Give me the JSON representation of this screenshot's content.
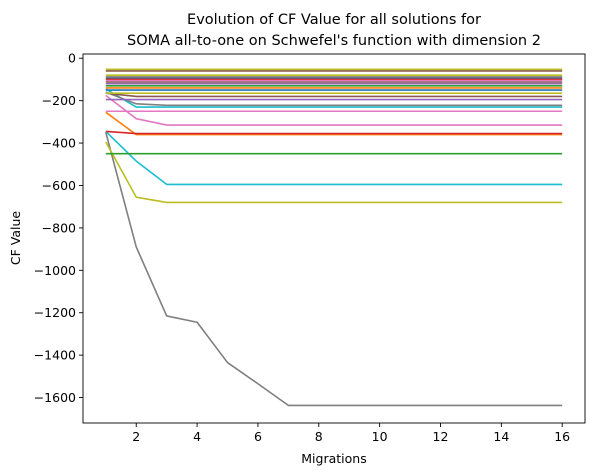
{
  "chart_data": {
    "type": "line",
    "title_line1": "Evolution of CF Value for all solutions for",
    "title_line2": "SOMA all-to-one on Schwefel's function with dimension 2",
    "xlabel": "Migrations",
    "ylabel": "CF Value",
    "xlim": [
      0.25,
      16.75
    ],
    "ylim": [
      -1720,
      20
    ],
    "xticks": [
      2,
      4,
      6,
      8,
      10,
      12,
      14,
      16
    ],
    "yticks": [
      0,
      -200,
      -400,
      -600,
      -800,
      -1000,
      -1200,
      -1400,
      -1600
    ],
    "x": [
      1,
      2,
      3,
      4,
      5,
      6,
      7,
      8,
      9,
      10,
      11,
      12,
      13,
      14,
      15,
      16
    ],
    "legend": "none",
    "grid": false,
    "series": [
      {
        "color": "#7f7f7f",
        "values": [
          -350,
          -890,
          -1215,
          -1245,
          -1435,
          -1535,
          -1637,
          -1637,
          -1637,
          -1637,
          -1637,
          -1637,
          -1637,
          -1637,
          -1637,
          -1637
        ]
      },
      {
        "color": "#bcbd22",
        "values": [
          -395,
          -655,
          -680,
          -680,
          -680,
          -680,
          -680,
          -680,
          -680,
          -680,
          -680,
          -680,
          -680,
          -680,
          -680,
          -680
        ]
      },
      {
        "color": "#17becf",
        "values": [
          -345,
          -485,
          -595,
          -595,
          -595,
          -595,
          -595,
          -595,
          -595,
          -595,
          -595,
          -595,
          -595,
          -595,
          -595,
          -595
        ]
      },
      {
        "color": "#2ca02c",
        "values": [
          -450,
          -450,
          -450,
          -450,
          -450,
          -450,
          -450,
          -450,
          -450,
          -450,
          -450,
          -450,
          -450,
          -450,
          -450,
          -450
        ]
      },
      {
        "color": "#ff7f0e",
        "values": [
          -255,
          -360,
          -360,
          -360,
          -360,
          -360,
          -360,
          -360,
          -360,
          -360,
          -360,
          -360,
          -360,
          -360,
          -360,
          -360
        ]
      },
      {
        "color": "#d62728",
        "values": [
          -345,
          -355,
          -355,
          -355,
          -355,
          -355,
          -355,
          -355,
          -355,
          -355,
          -355,
          -355,
          -355,
          -355,
          -355,
          -355
        ]
      },
      {
        "color": "#e377c2",
        "values": [
          -175,
          -285,
          -315,
          -315,
          -315,
          -315,
          -315,
          -315,
          -315,
          -315,
          -315,
          -315,
          -315,
          -315,
          -315,
          -315
        ]
      },
      {
        "color": "#e377c2",
        "values": [
          -250,
          -250,
          -250,
          -250,
          -250,
          -250,
          -250,
          -250,
          -250,
          -250,
          -250,
          -250,
          -250,
          -250,
          -250,
          -250
        ]
      },
      {
        "color": "#17becf",
        "values": [
          -145,
          -230,
          -230,
          -230,
          -230,
          -230,
          -230,
          -230,
          -230,
          -230,
          -230,
          -230,
          -230,
          -230,
          -230,
          -230
        ]
      },
      {
        "color": "#7f7f7f",
        "values": [
          -160,
          -215,
          -222,
          -222,
          -222,
          -222,
          -222,
          -222,
          -222,
          -222,
          -222,
          -222,
          -222,
          -222,
          -222,
          -222
        ]
      },
      {
        "color": "#9467bd",
        "values": [
          -195,
          -195,
          -195,
          -195,
          -195,
          -195,
          -195,
          -195,
          -195,
          -195,
          -195,
          -195,
          -195,
          -195,
          -195,
          -195
        ]
      },
      {
        "color": "#8c564b",
        "values": [
          -165,
          -180,
          -180,
          -180,
          -180,
          -180,
          -180,
          -180,
          -180,
          -180,
          -180,
          -180,
          -180,
          -180,
          -180,
          -180
        ]
      },
      {
        "color": "#bcbd22",
        "values": [
          -165,
          -165,
          -165,
          -165,
          -165,
          -165,
          -165,
          -165,
          -165,
          -165,
          -165,
          -165,
          -165,
          -165,
          -165,
          -165
        ]
      },
      {
        "color": "#1f77b4",
        "values": [
          -150,
          -150,
          -150,
          -150,
          -150,
          -150,
          -150,
          -150,
          -150,
          -150,
          -150,
          -150,
          -150,
          -150,
          -150,
          -150
        ]
      },
      {
        "color": "#ff7f0e",
        "values": [
          -140,
          -140,
          -140,
          -140,
          -140,
          -140,
          -140,
          -140,
          -140,
          -140,
          -140,
          -140,
          -140,
          -140,
          -140,
          -140
        ]
      },
      {
        "color": "#2ca02c",
        "values": [
          -130,
          -130,
          -130,
          -130,
          -130,
          -130,
          -130,
          -130,
          -130,
          -130,
          -130,
          -130,
          -130,
          -130,
          -130,
          -130
        ]
      },
      {
        "color": "#9467bd",
        "values": [
          -120,
          -120,
          -120,
          -120,
          -120,
          -120,
          -120,
          -120,
          -120,
          -120,
          -120,
          -120,
          -120,
          -120,
          -120,
          -120
        ]
      },
      {
        "color": "#8c564b",
        "values": [
          -112,
          -112,
          -112,
          -112,
          -112,
          -112,
          -112,
          -112,
          -112,
          -112,
          -112,
          -112,
          -112,
          -112,
          -112,
          -112
        ]
      },
      {
        "color": "#e377c2",
        "values": [
          -105,
          -105,
          -105,
          -105,
          -105,
          -105,
          -105,
          -105,
          -105,
          -105,
          -105,
          -105,
          -105,
          -105,
          -105,
          -105
        ]
      },
      {
        "color": "#d62728",
        "values": [
          -98,
          -98,
          -98,
          -98,
          -98,
          -98,
          -98,
          -98,
          -98,
          -98,
          -98,
          -98,
          -98,
          -98,
          -98,
          -98
        ]
      },
      {
        "color": "#1f77b4",
        "values": [
          -92,
          -92,
          -92,
          -92,
          -92,
          -92,
          -92,
          -92,
          -92,
          -92,
          -92,
          -92,
          -92,
          -92,
          -92,
          -92
        ]
      },
      {
        "color": "#7f7f7f",
        "values": [
          -88,
          -88,
          -88,
          -88,
          -88,
          -88,
          -88,
          -88,
          -88,
          -88,
          -88,
          -88,
          -88,
          -88,
          -88,
          -88
        ]
      },
      {
        "color": "#bcbd22",
        "values": [
          -80,
          -80,
          -80,
          -80,
          -80,
          -80,
          -80,
          -80,
          -80,
          -80,
          -80,
          -80,
          -80,
          -80,
          -80,
          -80
        ]
      },
      {
        "color": "#8c564b",
        "values": [
          -60,
          -60,
          -60,
          -60,
          -60,
          -60,
          -60,
          -60,
          -60,
          -60,
          -60,
          -60,
          -60,
          -60,
          -60,
          -60
        ]
      },
      {
        "color": "#bcbd22",
        "values": [
          -52,
          -52,
          -52,
          -52,
          -52,
          -52,
          -52,
          -52,
          -52,
          -52,
          -52,
          -52,
          -52,
          -52,
          -52,
          -52
        ]
      }
    ]
  }
}
